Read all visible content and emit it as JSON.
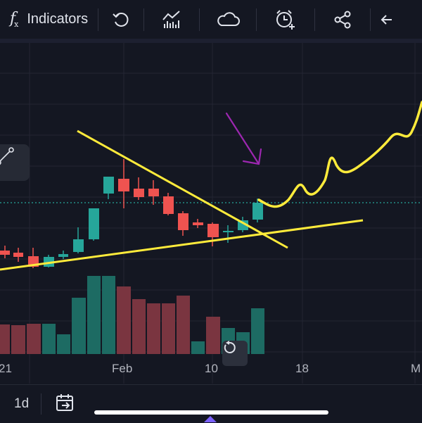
{
  "toolbar": {
    "indicators_label": "Indicators",
    "icons": [
      "fx-icon",
      "undo-icon",
      "chart-type-icon",
      "cloud-icon",
      "alert-clock-icon",
      "share-icon",
      "arrow-left-icon"
    ]
  },
  "chart": {
    "x_axis_labels": [
      "21",
      "Feb",
      "10",
      "18",
      "M"
    ],
    "candle_up_color": "#26a69a",
    "candle_down_color": "#ef5350",
    "trendline_color": "#ffeb3b",
    "annotation_arrow_color": "#9c27b0",
    "price_line_color": "#26a69a"
  },
  "bottom_bar": {
    "interval": "1d"
  }
}
